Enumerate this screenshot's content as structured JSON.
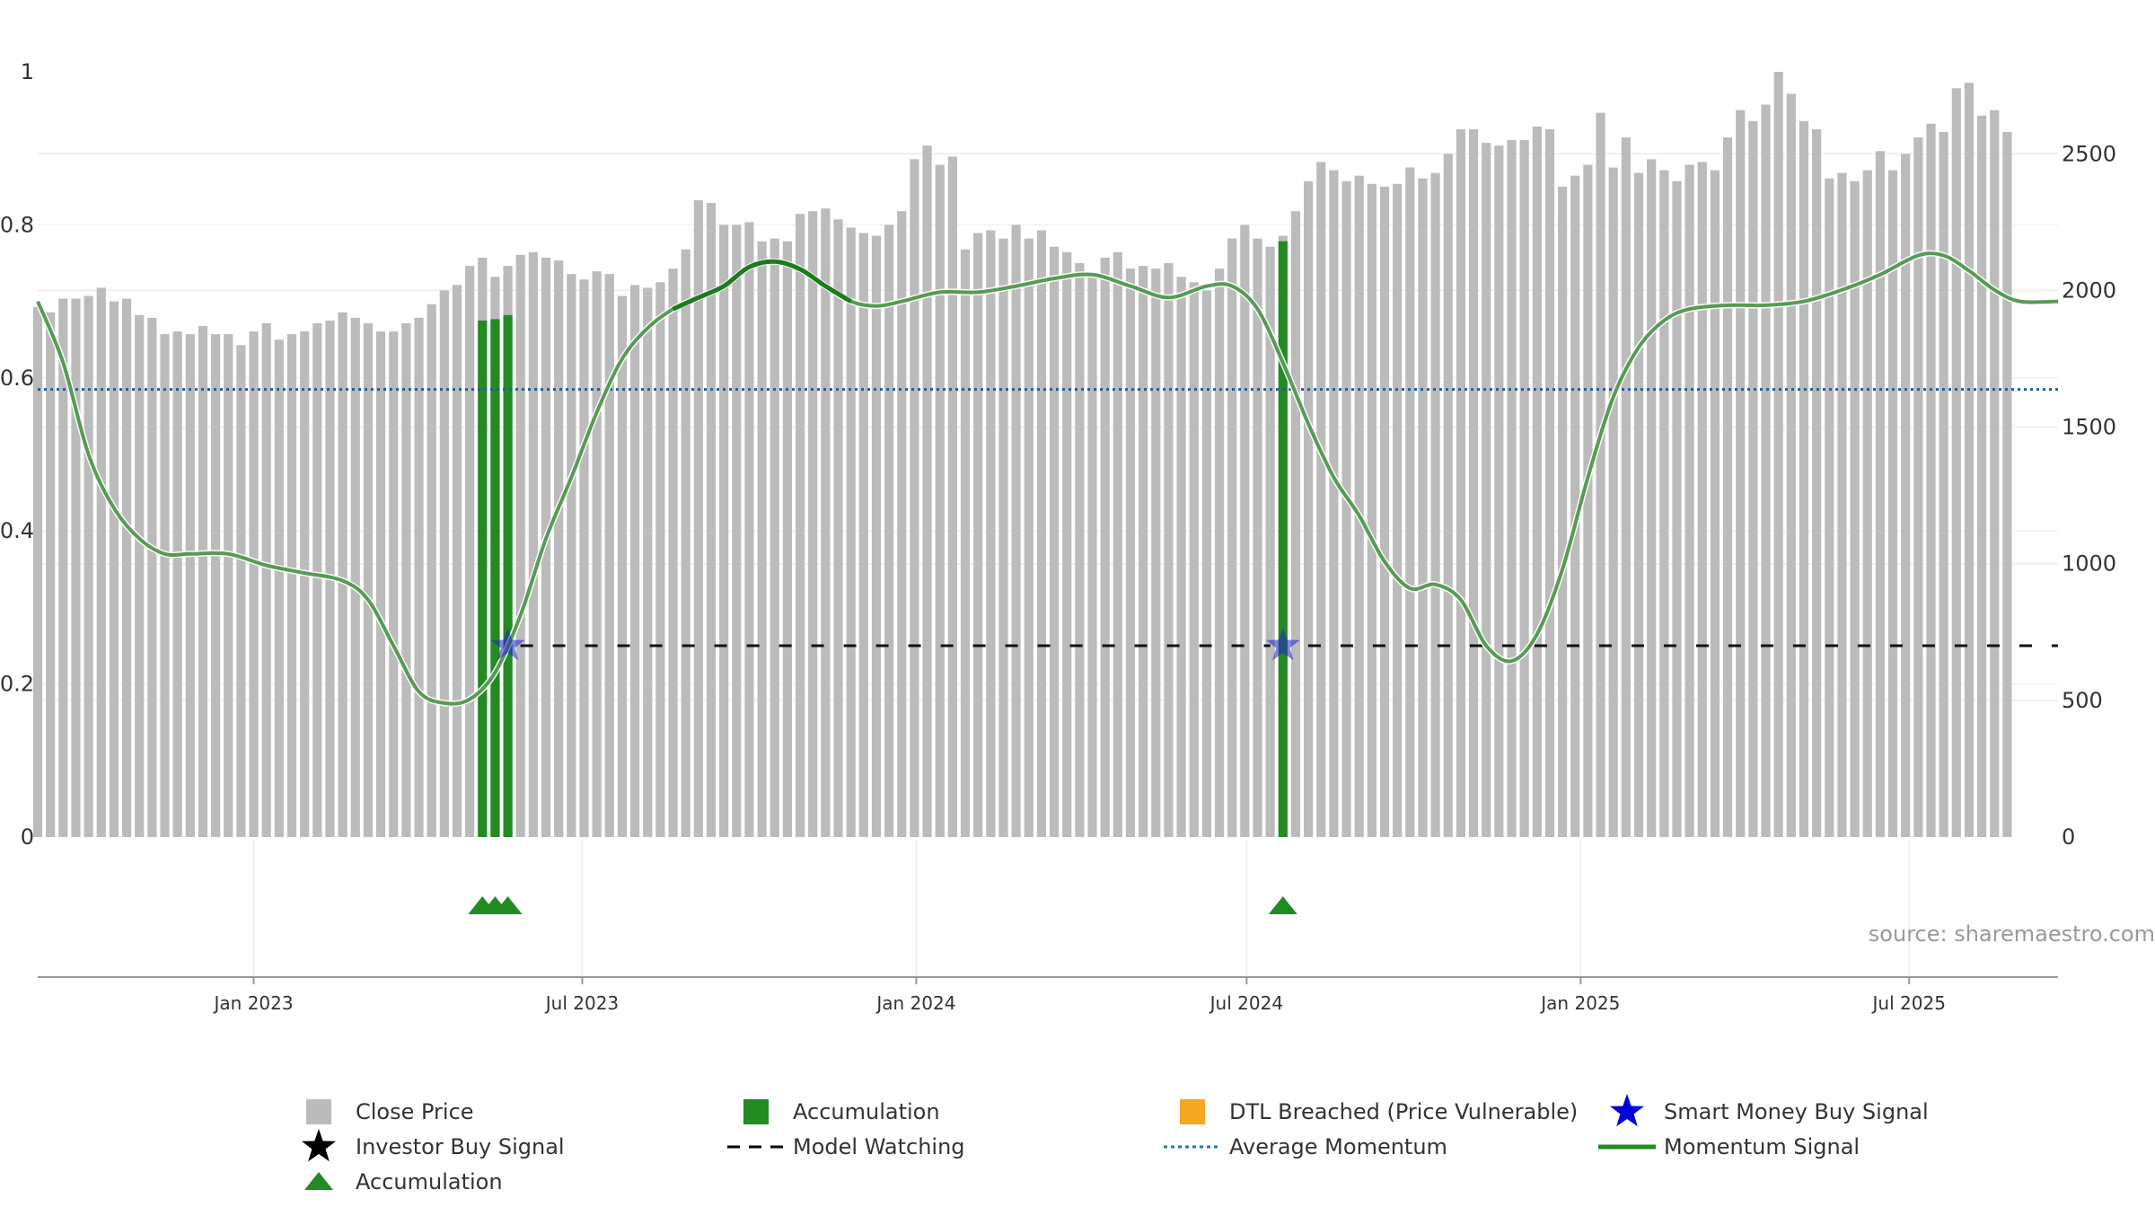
{
  "chart_data": {
    "type": "bar",
    "source": "source: sharemaestro.com",
    "y_left": {
      "ticks": [
        "0",
        "0.2",
        "0.4",
        "0.6",
        "0.8",
        "1"
      ],
      "range": [
        0,
        1.0
      ]
    },
    "y_right": {
      "ticks": [
        "0",
        "500",
        "1000",
        "1500",
        "2000",
        "2500"
      ],
      "range": [
        0,
        2800
      ]
    },
    "x_date_range": [
      "2022-09-04",
      "2025-09-21"
    ],
    "x_ticks": [
      {
        "label": "Jan 2023",
        "date": "2023-01-01"
      },
      {
        "label": "Jul 2023",
        "date": "2023-07-01"
      },
      {
        "label": "Jan 2024",
        "date": "2024-01-01"
      },
      {
        "label": "Jul 2024",
        "date": "2024-07-01"
      },
      {
        "label": "Jan 2025",
        "date": "2025-01-01"
      },
      {
        "label": "Jul 2025",
        "date": "2025-07-01"
      }
    ],
    "price_start_date": "2022-09-04",
    "price_interval_days": 7,
    "close_prices": [
      1940,
      1920,
      1970,
      1970,
      1980,
      2010,
      1960,
      1970,
      1910,
      1900,
      1840,
      1850,
      1840,
      1870,
      1840,
      1840,
      1800,
      1850,
      1880,
      1820,
      1840,
      1850,
      1880,
      1890,
      1920,
      1900,
      1880,
      1850,
      1850,
      1880,
      1900,
      1950,
      2000,
      2020,
      2090,
      2120,
      2050,
      2090,
      2130,
      2140,
      2120,
      2110,
      2060,
      2040,
      2070,
      2060,
      1980,
      2020,
      2010,
      2030,
      2080,
      2150,
      2330,
      2320,
      2240,
      2240,
      2250,
      2180,
      2190,
      2180,
      2280,
      2290,
      2300,
      2260,
      2230,
      2210,
      2200,
      2240,
      2290,
      2480,
      2530,
      2460,
      2490,
      2150,
      2210,
      2220,
      2190,
      2240,
      2190,
      2220,
      2160,
      2140,
      2100,
      2060,
      2120,
      2140,
      2080,
      2090,
      2080,
      2100,
      2050,
      2030,
      2000,
      2080,
      2190,
      2240,
      2190,
      2160,
      2200,
      2290,
      2400,
      2470,
      2440,
      2400,
      2420,
      2390,
      2380,
      2390,
      2450,
      2410,
      2430,
      2500,
      2590,
      2590,
      2540,
      2530,
      2550,
      2550,
      2600,
      2590,
      2380,
      2420,
      2460,
      2650,
      2450,
      2560,
      2430,
      2480,
      2440,
      2400,
      2460,
      2470,
      2440,
      2560,
      2660,
      2620,
      2680,
      2800,
      2720,
      2620,
      2590,
      2410,
      2430,
      2400,
      2440,
      2510,
      2440,
      2500,
      2560,
      2610,
      2580,
      2740,
      2760,
      2640,
      2660,
      2580
    ],
    "accumulation_bars": [
      {
        "date": "2023-05-07",
        "value": 1890
      },
      {
        "date": "2023-05-14",
        "value": 1895
      },
      {
        "date": "2023-05-21",
        "value": 1910
      },
      {
        "date": "2024-07-21",
        "value": 2180
      }
    ],
    "accumulation_markers": [
      "2023-05-07",
      "2023-05-14",
      "2023-05-21",
      "2024-07-21"
    ],
    "smart_money_buy_signals": [
      {
        "date": "2023-05-21",
        "value": 0.25
      },
      {
        "date": "2024-07-21",
        "value": 0.25
      }
    ],
    "model_watching": [
      {
        "start": "2023-05-21",
        "end": "2024-07-14",
        "value": 0.25
      },
      {
        "start": "2024-07-28",
        "end": "2025-09-21",
        "value": 0.25
      }
    ],
    "average_momentum": 0.585,
    "momentum_series": [
      [
        "2022-09-04",
        0.7
      ],
      [
        "2022-09-18",
        0.62
      ],
      [
        "2022-10-02",
        0.5
      ],
      [
        "2022-10-16",
        0.43
      ],
      [
        "2022-10-30",
        0.39
      ],
      [
        "2022-11-13",
        0.37
      ],
      [
        "2022-11-27",
        0.37
      ],
      [
        "2022-12-18",
        0.37
      ],
      [
        "2023-01-08",
        0.355
      ],
      [
        "2023-01-29",
        0.345
      ],
      [
        "2023-02-19",
        0.335
      ],
      [
        "2023-03-05",
        0.31
      ],
      [
        "2023-03-19",
        0.25
      ],
      [
        "2023-04-02",
        0.19
      ],
      [
        "2023-04-16",
        0.175
      ],
      [
        "2023-04-30",
        0.18
      ],
      [
        "2023-05-14",
        0.215
      ],
      [
        "2023-05-28",
        0.29
      ],
      [
        "2023-06-11",
        0.39
      ],
      [
        "2023-06-25",
        0.47
      ],
      [
        "2023-07-09",
        0.555
      ],
      [
        "2023-07-23",
        0.625
      ],
      [
        "2023-08-06",
        0.665
      ],
      [
        "2023-08-20",
        0.69
      ],
      [
        "2023-09-03",
        0.705
      ],
      [
        "2023-09-17",
        0.72
      ],
      [
        "2023-10-01",
        0.745
      ],
      [
        "2023-10-15",
        0.752
      ],
      [
        "2023-10-29",
        0.742
      ],
      [
        "2023-11-12",
        0.72
      ],
      [
        "2023-11-26",
        0.7
      ],
      [
        "2023-12-10",
        0.694
      ],
      [
        "2023-12-24",
        0.7
      ],
      [
        "2024-01-14",
        0.712
      ],
      [
        "2024-02-04",
        0.712
      ],
      [
        "2024-02-25",
        0.72
      ],
      [
        "2024-03-17",
        0.73
      ],
      [
        "2024-04-07",
        0.735
      ],
      [
        "2024-04-28",
        0.72
      ],
      [
        "2024-05-19",
        0.705
      ],
      [
        "2024-06-09",
        0.72
      ],
      [
        "2024-06-23",
        0.72
      ],
      [
        "2024-07-07",
        0.69
      ],
      [
        "2024-07-21",
        0.62
      ],
      [
        "2024-08-04",
        0.54
      ],
      [
        "2024-08-18",
        0.47
      ],
      [
        "2024-09-01",
        0.42
      ],
      [
        "2024-09-15",
        0.36
      ],
      [
        "2024-09-29",
        0.325
      ],
      [
        "2024-10-13",
        0.33
      ],
      [
        "2024-10-27",
        0.31
      ],
      [
        "2024-11-10",
        0.25
      ],
      [
        "2024-11-24",
        0.23
      ],
      [
        "2024-12-08",
        0.265
      ],
      [
        "2024-12-22",
        0.35
      ],
      [
        "2025-01-05",
        0.47
      ],
      [
        "2025-01-19",
        0.575
      ],
      [
        "2025-02-02",
        0.64
      ],
      [
        "2025-02-16",
        0.675
      ],
      [
        "2025-03-02",
        0.69
      ],
      [
        "2025-03-23",
        0.695
      ],
      [
        "2025-04-13",
        0.695
      ],
      [
        "2025-05-04",
        0.7
      ],
      [
        "2025-05-25",
        0.715
      ],
      [
        "2025-06-15",
        0.735
      ],
      [
        "2025-07-06",
        0.76
      ],
      [
        "2025-07-20",
        0.76
      ],
      [
        "2025-08-03",
        0.74
      ],
      [
        "2025-08-17",
        0.715
      ],
      [
        "2025-08-31",
        0.7
      ],
      [
        "2025-09-21",
        0.7
      ]
    ],
    "momentum_bold_segment": [
      "2023-08-20",
      "2023-11-26"
    ],
    "legend": [
      {
        "key": "close_price",
        "label": "Close Price",
        "color": "#bbbbbb",
        "symbol": "square"
      },
      {
        "key": "accumulation_bar",
        "label": "Accumulation",
        "color": "#228b22",
        "symbol": "square"
      },
      {
        "key": "dtl_breached",
        "label": "DTL Breached (Price Vulnerable)",
        "color": "#f5a623",
        "symbol": "square"
      },
      {
        "key": "smart_money_buy",
        "label": "Smart Money Buy Signal",
        "color": "#0000dd",
        "symbol": "star"
      },
      {
        "key": "investor_buy",
        "label": "Investor Buy Signal",
        "color": "#000000",
        "symbol": "star"
      },
      {
        "key": "model_watching",
        "label": "Model Watching",
        "color": "#000000",
        "symbol": "dash"
      },
      {
        "key": "average_momentum",
        "label": "Average Momentum",
        "color": "#1f77b4",
        "symbol": "dots"
      },
      {
        "key": "momentum_signal",
        "label": "Momentum Signal",
        "color": "#228b22",
        "symbol": "line"
      },
      {
        "key": "accumulation_marker",
        "label": "Accumulation",
        "color": "#228b22",
        "symbol": "triangle"
      }
    ],
    "colors": {
      "price_bar": "#bbbbbb",
      "accumulation": "#228b22",
      "momentum": "#3a8a3a",
      "momentum_bold": "#1e7a1e",
      "average_momentum": "#1f5f9f",
      "smart_money": "#2020cc",
      "model_watching": "#111111"
    }
  }
}
